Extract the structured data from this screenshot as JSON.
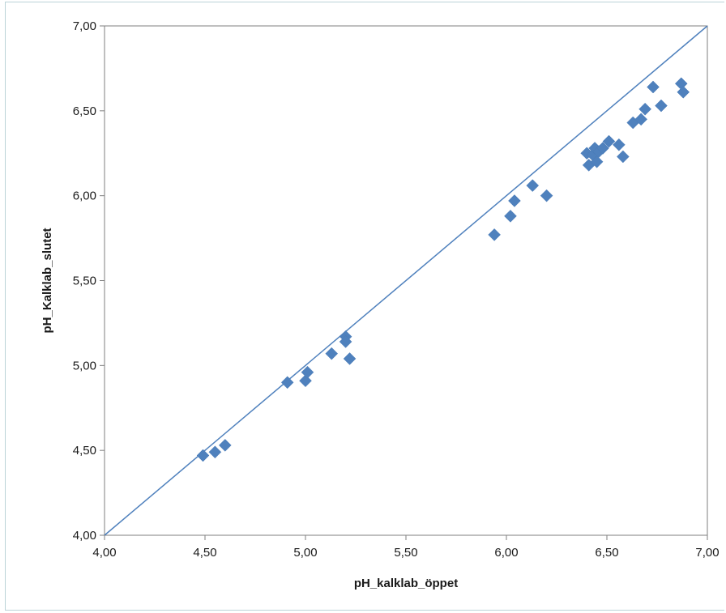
{
  "chart_data": {
    "type": "scatter",
    "title": "",
    "xlabel": "pH_kalklab_öppet",
    "ylabel": "pH_Kalklab_slutet",
    "xlim": [
      4.0,
      7.0
    ],
    "ylim": [
      4.0,
      7.0
    ],
    "x_ticks": [
      "4,00",
      "4,50",
      "5,00",
      "5,50",
      "6,00",
      "6,50",
      "7,00"
    ],
    "y_ticks": [
      "4,00",
      "4,50",
      "5,00",
      "5,50",
      "6,00",
      "6,50",
      "7,00"
    ],
    "grid": false,
    "legend": "none",
    "marker_color": "#4f81bd",
    "reference_line": {
      "from": [
        4.0,
        4.0
      ],
      "to": [
        7.0,
        7.0
      ],
      "color": "#4f81bd"
    },
    "points": [
      {
        "x": 4.49,
        "y": 4.47
      },
      {
        "x": 4.55,
        "y": 4.49
      },
      {
        "x": 4.6,
        "y": 4.53
      },
      {
        "x": 4.91,
        "y": 4.9
      },
      {
        "x": 5.0,
        "y": 4.91
      },
      {
        "x": 5.01,
        "y": 4.96
      },
      {
        "x": 5.13,
        "y": 5.07
      },
      {
        "x": 5.2,
        "y": 5.17
      },
      {
        "x": 5.2,
        "y": 5.14
      },
      {
        "x": 5.22,
        "y": 5.04
      },
      {
        "x": 5.94,
        "y": 5.77
      },
      {
        "x": 6.02,
        "y": 5.88
      },
      {
        "x": 6.04,
        "y": 5.97
      },
      {
        "x": 6.13,
        "y": 6.06
      },
      {
        "x": 6.2,
        "y": 6.0
      },
      {
        "x": 6.4,
        "y": 6.25
      },
      {
        "x": 6.41,
        "y": 6.18
      },
      {
        "x": 6.43,
        "y": 6.24
      },
      {
        "x": 6.44,
        "y": 6.28
      },
      {
        "x": 6.45,
        "y": 6.2
      },
      {
        "x": 6.46,
        "y": 6.26
      },
      {
        "x": 6.48,
        "y": 6.28
      },
      {
        "x": 6.51,
        "y": 6.32
      },
      {
        "x": 6.56,
        "y": 6.3
      },
      {
        "x": 6.58,
        "y": 6.23
      },
      {
        "x": 6.63,
        "y": 6.43
      },
      {
        "x": 6.67,
        "y": 6.45
      },
      {
        "x": 6.69,
        "y": 6.51
      },
      {
        "x": 6.73,
        "y": 6.64
      },
      {
        "x": 6.77,
        "y": 6.53
      },
      {
        "x": 6.87,
        "y": 6.66
      },
      {
        "x": 6.88,
        "y": 6.61
      }
    ]
  }
}
